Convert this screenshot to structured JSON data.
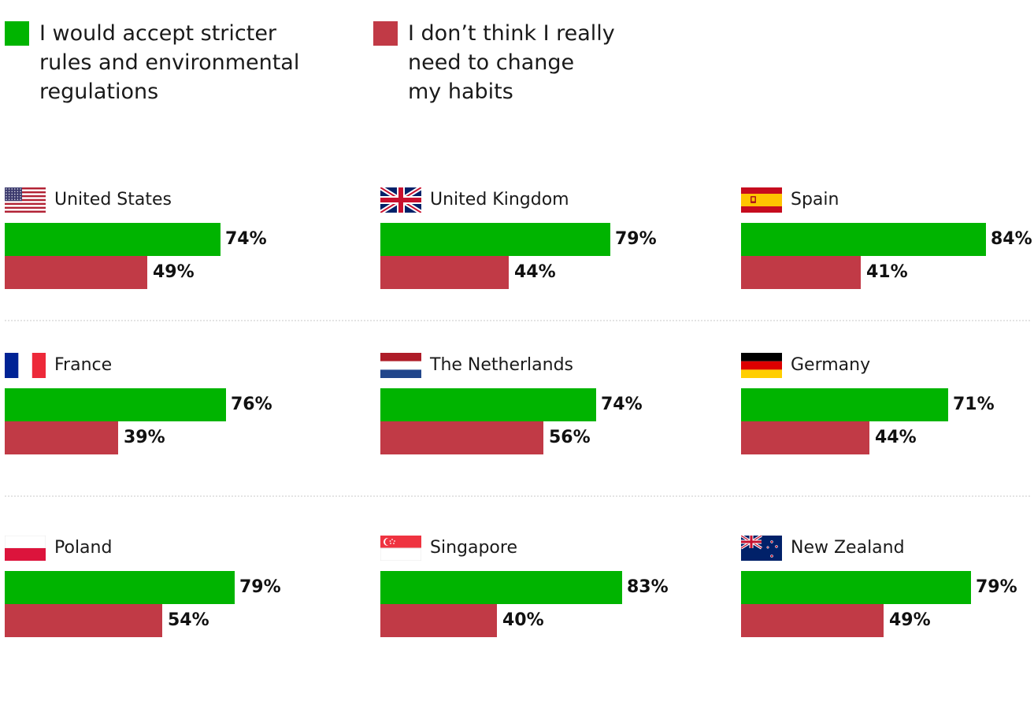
{
  "colors": {
    "accept": "#00b400",
    "no_change": "#c13a46"
  },
  "chart_data": {
    "type": "bar",
    "orientation": "horizontal",
    "layout": "small-multiples",
    "series_labels": {
      "accept": "I would accept stricter\nrules and environmental\nregulations",
      "no_change": "I don’t think I really\nneed to change\nmy habits"
    },
    "xlim": [
      0,
      100
    ],
    "countries": [
      {
        "name": "United States",
        "flag": "us-flag-icon",
        "accept": 74,
        "no_change": 49,
        "accept_label": "74%",
        "no_change_label": "49%"
      },
      {
        "name": "United Kingdom",
        "flag": "uk-flag-icon",
        "accept": 79,
        "no_change": 44,
        "accept_label": "79%",
        "no_change_label": "44%"
      },
      {
        "name": "Spain",
        "flag": "es-flag-icon",
        "accept": 84,
        "no_change": 41,
        "accept_label": "84%",
        "no_change_label": "41%"
      },
      {
        "name": "France",
        "flag": "fr-flag-icon",
        "accept": 76,
        "no_change": 39,
        "accept_label": "76%",
        "no_change_label": "39%"
      },
      {
        "name": "The Netherlands",
        "flag": "nl-flag-icon",
        "accept": 74,
        "no_change": 56,
        "accept_label": "74%",
        "no_change_label": "56%"
      },
      {
        "name": "Germany",
        "flag": "de-flag-icon",
        "accept": 71,
        "no_change": 44,
        "accept_label": "71%",
        "no_change_label": "44%"
      },
      {
        "name": "Poland",
        "flag": "pl-flag-icon",
        "accept": 79,
        "no_change": 54,
        "accept_label": "79%",
        "no_change_label": "54%"
      },
      {
        "name": "Singapore",
        "flag": "sg-flag-icon",
        "accept": 83,
        "no_change": 40,
        "accept_label": "83%",
        "no_change_label": "40%"
      },
      {
        "name": "New Zealand",
        "flag": "nz-flag-icon",
        "accept": 79,
        "no_change": 49,
        "accept_label": "79%",
        "no_change_label": "49%"
      }
    ]
  }
}
